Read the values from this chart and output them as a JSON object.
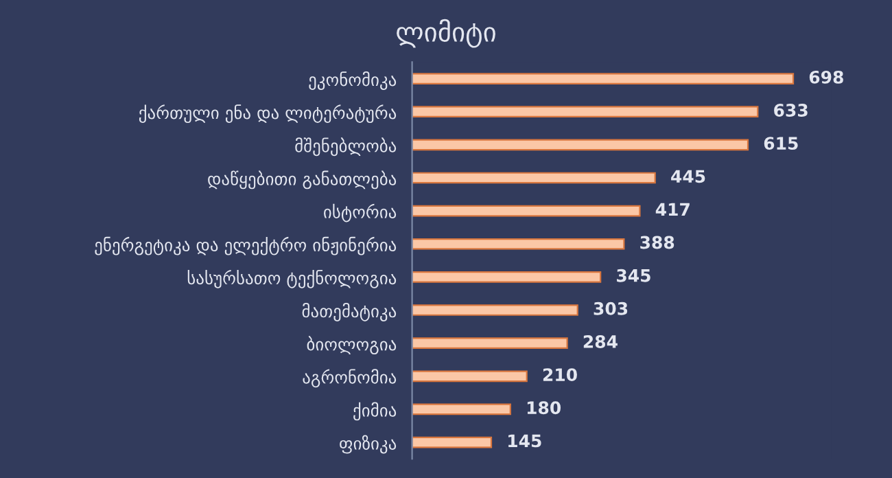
{
  "chart_data": {
    "type": "bar",
    "orientation": "horizontal",
    "title": "ლიმიტი",
    "categories": [
      "ეკონომიკა",
      "ქართული ენა და ლიტერატურა",
      "მშენებლობა",
      "დაწყებითი განათლება",
      "ისტორია",
      "ენერგეტიკა და ელექტრო ინჟინერია",
      "სასურსათო ტექნოლოგია",
      "მათემატიკა",
      "ბიოლოგია",
      "აგრონომია",
      "ქიმია",
      "ფიზიკა"
    ],
    "series": [
      {
        "color": "#fbc7a6",
        "values": [
          698,
          633,
          615,
          445,
          417,
          388,
          345,
          303,
          284,
          210,
          180,
          145
        ]
      }
    ],
    "data_labels": true,
    "tick_labels": "y",
    "grid": false,
    "legend": false
  }
}
